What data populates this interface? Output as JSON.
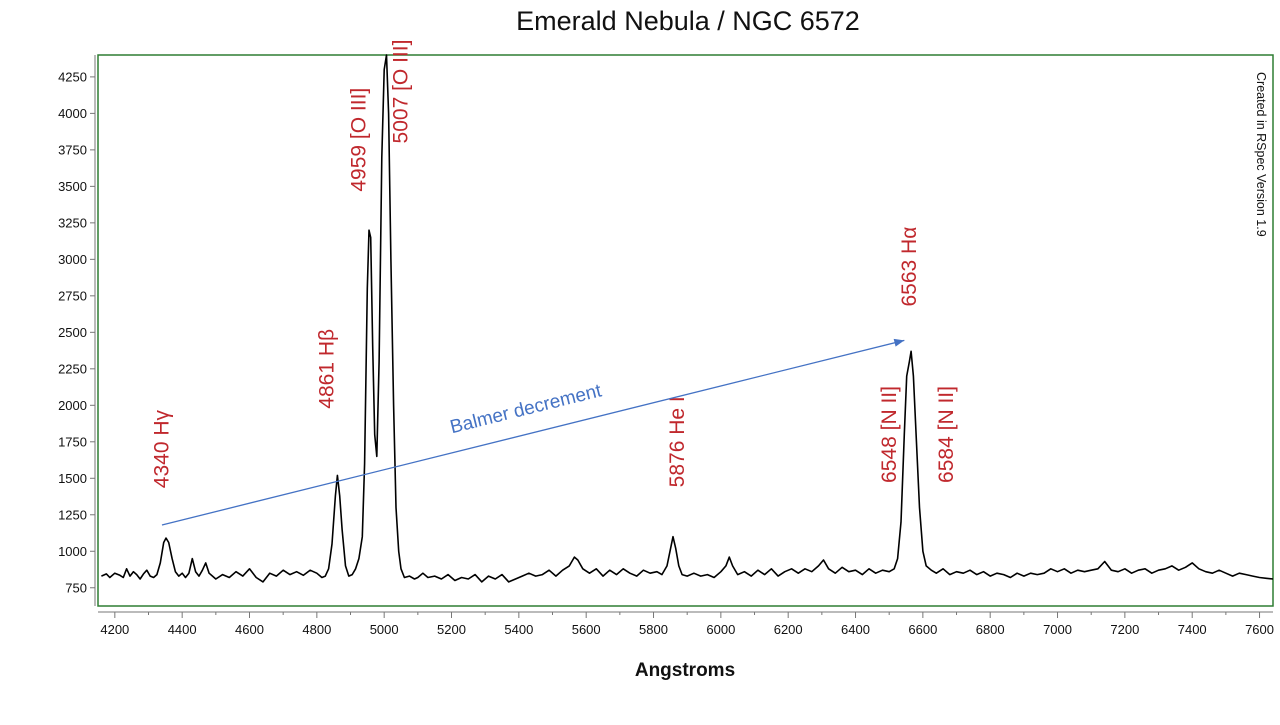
{
  "chart_data": {
    "type": "line",
    "title": "Emerald Nebula / NGC 6572",
    "xlabel": "Angstroms",
    "ylabel": "",
    "watermark": "Created in RSpec Version 1.9",
    "xlim": [
      4150,
      7640
    ],
    "ylim": [
      625,
      4400
    ],
    "x_ticks": [
      4200,
      4400,
      4600,
      4800,
      5000,
      5200,
      5400,
      5600,
      5800,
      6000,
      6200,
      6400,
      6600,
      6800,
      7000,
      7200,
      7400,
      7600
    ],
    "y_ticks": [
      750,
      1000,
      1250,
      1500,
      1750,
      2000,
      2250,
      2500,
      2750,
      3000,
      3250,
      3500,
      3750,
      4000,
      4250
    ],
    "grid": false,
    "legend": "none",
    "colors": {
      "line": "#000000",
      "labels": "#c0282d",
      "annotation": "#4472c4",
      "frame": "#2e7d32"
    },
    "series": [
      {
        "values": [
          [
            4160,
            830
          ],
          [
            4175,
            845
          ],
          [
            4185,
            820
          ],
          [
            4200,
            850
          ],
          [
            4215,
            835
          ],
          [
            4225,
            820
          ],
          [
            4235,
            880
          ],
          [
            4245,
            830
          ],
          [
            4255,
            860
          ],
          [
            4265,
            840
          ],
          [
            4275,
            810
          ],
          [
            4285,
            845
          ],
          [
            4295,
            870
          ],
          [
            4305,
            830
          ],
          [
            4315,
            820
          ],
          [
            4325,
            840
          ],
          [
            4335,
            920
          ],
          [
            4345,
            1060
          ],
          [
            4352,
            1090
          ],
          [
            4360,
            1060
          ],
          [
            4370,
            950
          ],
          [
            4380,
            860
          ],
          [
            4390,
            830
          ],
          [
            4400,
            850
          ],
          [
            4410,
            820
          ],
          [
            4420,
            850
          ],
          [
            4430,
            950
          ],
          [
            4440,
            860
          ],
          [
            4450,
            830
          ],
          [
            4460,
            870
          ],
          [
            4470,
            920
          ],
          [
            4480,
            850
          ],
          [
            4490,
            830
          ],
          [
            4500,
            810
          ],
          [
            4520,
            840
          ],
          [
            4540,
            820
          ],
          [
            4560,
            860
          ],
          [
            4580,
            830
          ],
          [
            4600,
            880
          ],
          [
            4620,
            820
          ],
          [
            4640,
            790
          ],
          [
            4660,
            850
          ],
          [
            4680,
            830
          ],
          [
            4700,
            870
          ],
          [
            4720,
            840
          ],
          [
            4740,
            860
          ],
          [
            4760,
            835
          ],
          [
            4780,
            870
          ],
          [
            4800,
            850
          ],
          [
            4815,
            820
          ],
          [
            4825,
            830
          ],
          [
            4835,
            880
          ],
          [
            4845,
            1050
          ],
          [
            4855,
            1380
          ],
          [
            4861,
            1520
          ],
          [
            4868,
            1380
          ],
          [
            4875,
            1150
          ],
          [
            4885,
            900
          ],
          [
            4895,
            830
          ],
          [
            4905,
            840
          ],
          [
            4915,
            880
          ],
          [
            4925,
            950
          ],
          [
            4935,
            1100
          ],
          [
            4942,
            1600
          ],
          [
            4950,
            2800
          ],
          [
            4955,
            3200
          ],
          [
            4960,
            3150
          ],
          [
            4966,
            2400
          ],
          [
            4972,
            1800
          ],
          [
            4978,
            1650
          ],
          [
            4985,
            2300
          ],
          [
            4993,
            3700
          ],
          [
            5000,
            4300
          ],
          [
            5007,
            4400
          ],
          [
            5013,
            4000
          ],
          [
            5020,
            3000
          ],
          [
            5028,
            2000
          ],
          [
            5035,
            1300
          ],
          [
            5043,
            1000
          ],
          [
            5050,
            880
          ],
          [
            5060,
            820
          ],
          [
            5075,
            830
          ],
          [
            5090,
            810
          ],
          [
            5100,
            820
          ],
          [
            5115,
            850
          ],
          [
            5130,
            820
          ],
          [
            5150,
            830
          ],
          [
            5170,
            810
          ],
          [
            5190,
            840
          ],
          [
            5210,
            800
          ],
          [
            5230,
            820
          ],
          [
            5250,
            810
          ],
          [
            5270,
            840
          ],
          [
            5290,
            790
          ],
          [
            5310,
            830
          ],
          [
            5330,
            810
          ],
          [
            5350,
            840
          ],
          [
            5370,
            790
          ],
          [
            5390,
            810
          ],
          [
            5410,
            830
          ],
          [
            5430,
            850
          ],
          [
            5450,
            830
          ],
          [
            5470,
            840
          ],
          [
            5490,
            870
          ],
          [
            5510,
            830
          ],
          [
            5530,
            870
          ],
          [
            5550,
            900
          ],
          [
            5565,
            960
          ],
          [
            5575,
            940
          ],
          [
            5590,
            880
          ],
          [
            5610,
            850
          ],
          [
            5630,
            880
          ],
          [
            5650,
            830
          ],
          [
            5670,
            870
          ],
          [
            5690,
            840
          ],
          [
            5710,
            880
          ],
          [
            5730,
            850
          ],
          [
            5750,
            830
          ],
          [
            5770,
            870
          ],
          [
            5790,
            850
          ],
          [
            5810,
            860
          ],
          [
            5825,
            840
          ],
          [
            5840,
            900
          ],
          [
            5850,
            1010
          ],
          [
            5858,
            1100
          ],
          [
            5866,
            1020
          ],
          [
            5875,
            900
          ],
          [
            5885,
            840
          ],
          [
            5900,
            830
          ],
          [
            5920,
            850
          ],
          [
            5940,
            830
          ],
          [
            5960,
            840
          ],
          [
            5980,
            820
          ],
          [
            6000,
            860
          ],
          [
            6015,
            900
          ],
          [
            6025,
            960
          ],
          [
            6035,
            900
          ],
          [
            6050,
            840
          ],
          [
            6070,
            860
          ],
          [
            6090,
            830
          ],
          [
            6110,
            870
          ],
          [
            6130,
            840
          ],
          [
            6150,
            880
          ],
          [
            6170,
            830
          ],
          [
            6190,
            860
          ],
          [
            6210,
            880
          ],
          [
            6230,
            850
          ],
          [
            6250,
            880
          ],
          [
            6270,
            860
          ],
          [
            6290,
            900
          ],
          [
            6305,
            940
          ],
          [
            6320,
            880
          ],
          [
            6340,
            850
          ],
          [
            6360,
            890
          ],
          [
            6380,
            860
          ],
          [
            6400,
            870
          ],
          [
            6420,
            840
          ],
          [
            6440,
            880
          ],
          [
            6460,
            850
          ],
          [
            6480,
            870
          ],
          [
            6500,
            860
          ],
          [
            6515,
            880
          ],
          [
            6525,
            950
          ],
          [
            6535,
            1200
          ],
          [
            6545,
            1800
          ],
          [
            6552,
            2200
          ],
          [
            6560,
            2300
          ],
          [
            6565,
            2370
          ],
          [
            6572,
            2200
          ],
          [
            6580,
            1800
          ],
          [
            6590,
            1300
          ],
          [
            6600,
            1000
          ],
          [
            6610,
            900
          ],
          [
            6625,
            870
          ],
          [
            6640,
            850
          ],
          [
            6660,
            880
          ],
          [
            6680,
            840
          ],
          [
            6700,
            860
          ],
          [
            6720,
            850
          ],
          [
            6740,
            870
          ],
          [
            6760,
            840
          ],
          [
            6780,
            860
          ],
          [
            6800,
            830
          ],
          [
            6820,
            850
          ],
          [
            6840,
            840
          ],
          [
            6860,
            820
          ],
          [
            6880,
            850
          ],
          [
            6900,
            830
          ],
          [
            6920,
            850
          ],
          [
            6940,
            840
          ],
          [
            6960,
            850
          ],
          [
            6980,
            880
          ],
          [
            7000,
            860
          ],
          [
            7020,
            880
          ],
          [
            7040,
            850
          ],
          [
            7060,
            870
          ],
          [
            7080,
            860
          ],
          [
            7100,
            870
          ],
          [
            7120,
            880
          ],
          [
            7140,
            930
          ],
          [
            7160,
            870
          ],
          [
            7180,
            860
          ],
          [
            7200,
            880
          ],
          [
            7220,
            850
          ],
          [
            7240,
            870
          ],
          [
            7260,
            880
          ],
          [
            7280,
            850
          ],
          [
            7300,
            870
          ],
          [
            7320,
            880
          ],
          [
            7340,
            900
          ],
          [
            7360,
            870
          ],
          [
            7380,
            890
          ],
          [
            7400,
            920
          ],
          [
            7420,
            880
          ],
          [
            7440,
            860
          ],
          [
            7460,
            850
          ],
          [
            7480,
            870
          ],
          [
            7500,
            850
          ],
          [
            7520,
            830
          ],
          [
            7540,
            850
          ],
          [
            7560,
            840
          ],
          [
            7580,
            830
          ],
          [
            7600,
            820
          ],
          [
            7620,
            815
          ],
          [
            7640,
            810
          ]
        ]
      }
    ],
    "annotations": [
      {
        "text": "4340 Hγ",
        "x": 4360,
        "y": 1700
      },
      {
        "text": "4861 Hβ",
        "x": 4850,
        "y": 2250
      },
      {
        "text": "4959 [O III]",
        "x": 4945,
        "y": 3820
      },
      {
        "text": "5007 [O III]",
        "x": 5070,
        "y": 4150
      },
      {
        "text": "5876 He I",
        "x": 5890,
        "y": 1750
      },
      {
        "text": "6548 [N II]",
        "x": 6520,
        "y": 1800
      },
      {
        "text": "6563 Hα",
        "x": 6580,
        "y": 2950
      },
      {
        "text": "6584 [N II]",
        "x": 6690,
        "y": 1800
      }
    ],
    "arrow": {
      "text": "Balmer decrement",
      "from": [
        4340,
        1180
      ],
      "to": [
        6545,
        2445
      ]
    }
  }
}
